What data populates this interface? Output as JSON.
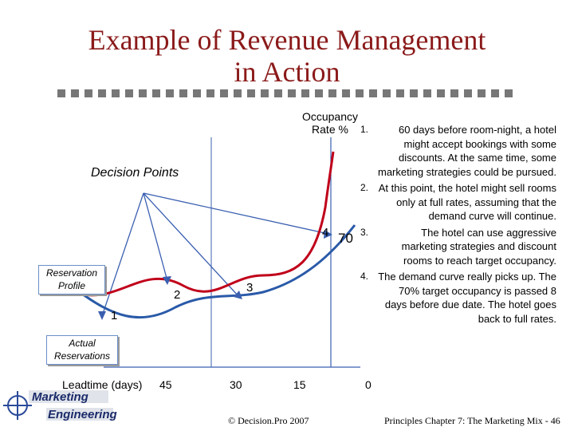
{
  "title": {
    "line1": "Example of Revenue Management",
    "line2": "in Action"
  },
  "diagram": {
    "y_axis_label_line1": "Occupancy",
    "y_axis_label_line2": "Rate %",
    "decision_points_label": "Decision Points",
    "reservation_profile_label_line1": "Reservation",
    "reservation_profile_label_line2": "Profile",
    "actual_reservations_label_line1": "Actual",
    "actual_reservations_label_line2": "Reservations",
    "target_value": "70",
    "points": [
      "1",
      "2",
      "3",
      "4"
    ],
    "x_axis": {
      "label": "Leadtime (days)",
      "ticks": [
        "45",
        "30",
        "15",
        "0"
      ]
    },
    "colors": {
      "reservation_curve": "#c0001a",
      "actual_curve": "#2a5aa8",
      "lines": "#3a5fb0"
    }
  },
  "notes": [
    {
      "number": "1.",
      "text": "60 days before room-night, a hotel might accept bookings with some discounts.  At the same time, some marketing strategies could be pursued."
    },
    {
      "number": "2.",
      "text": "At this point, the hotel might sell rooms only at full rates, assuming that the demand curve will continue."
    },
    {
      "number": "3.",
      "text": "The hotel can use aggressive marketing strategies and discount rooms to reach target occupancy."
    },
    {
      "number": "4.",
      "text": "The demand curve really picks up. The 70% target occupancy is passed 8 days before due date. The hotel goes back to full rates."
    }
  ],
  "footer": {
    "logo_line1": "Marketing",
    "logo_line2": "Engineering",
    "copyright": "© Decision.Pro 2007",
    "chapter": "Principles Chapter 7: The Marketing Mix - 46"
  }
}
